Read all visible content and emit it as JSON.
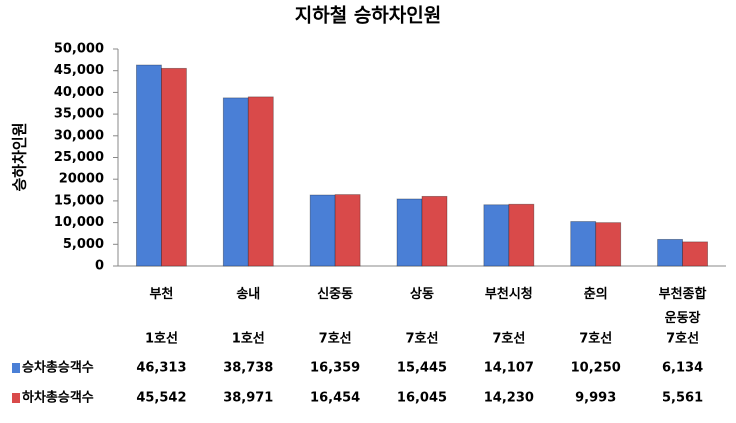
{
  "chart_data": {
    "type": "bar",
    "title": "지하철 승하차인원",
    "y_label": "승하차인원",
    "categories": [
      "부천",
      "송내",
      "신중동",
      "상동",
      "부천시청",
      "춘의",
      "부천종합\n운동장"
    ],
    "lines": [
      "1호선",
      "1호선",
      "7호선",
      "7호선",
      "7호선",
      "7호선",
      "7호선"
    ],
    "series": [
      {
        "name": "승차총승객수",
        "color": "#4a7fd6",
        "values": [
          46313,
          38738,
          16359,
          15445,
          14107,
          10250,
          6134
        ],
        "value_labels": [
          "46,313",
          "38,738",
          "16,359",
          "15,445",
          "14,107",
          "10,250",
          "6,134"
        ]
      },
      {
        "name": "하차총승객수",
        "color": "#d94a4a",
        "values": [
          45542,
          38971,
          16454,
          16045,
          14230,
          9993,
          5561
        ],
        "value_labels": [
          "45,542",
          "38,971",
          "16,454",
          "16,045",
          "14,230",
          "9,993",
          "5,561"
        ]
      }
    ],
    "ylim": [
      0,
      50000
    ],
    "yticks": [
      0,
      {
        "value": 5000,
        "label": "5,000"
      },
      {
        "value": 10000,
        "label": "10,000"
      },
      {
        "value": 15000,
        "label": "15,000"
      },
      20000,
      {
        "value": 25000,
        "label": "25,000"
      },
      {
        "value": 30000,
        "label": "30,000"
      },
      {
        "value": 35000,
        "label": "35,000"
      },
      {
        "value": 40000,
        "label": "40,000"
      },
      {
        "value": 45000,
        "label": "45,000"
      },
      {
        "value": 50000,
        "label": "50,000"
      }
    ],
    "grid": false
  }
}
